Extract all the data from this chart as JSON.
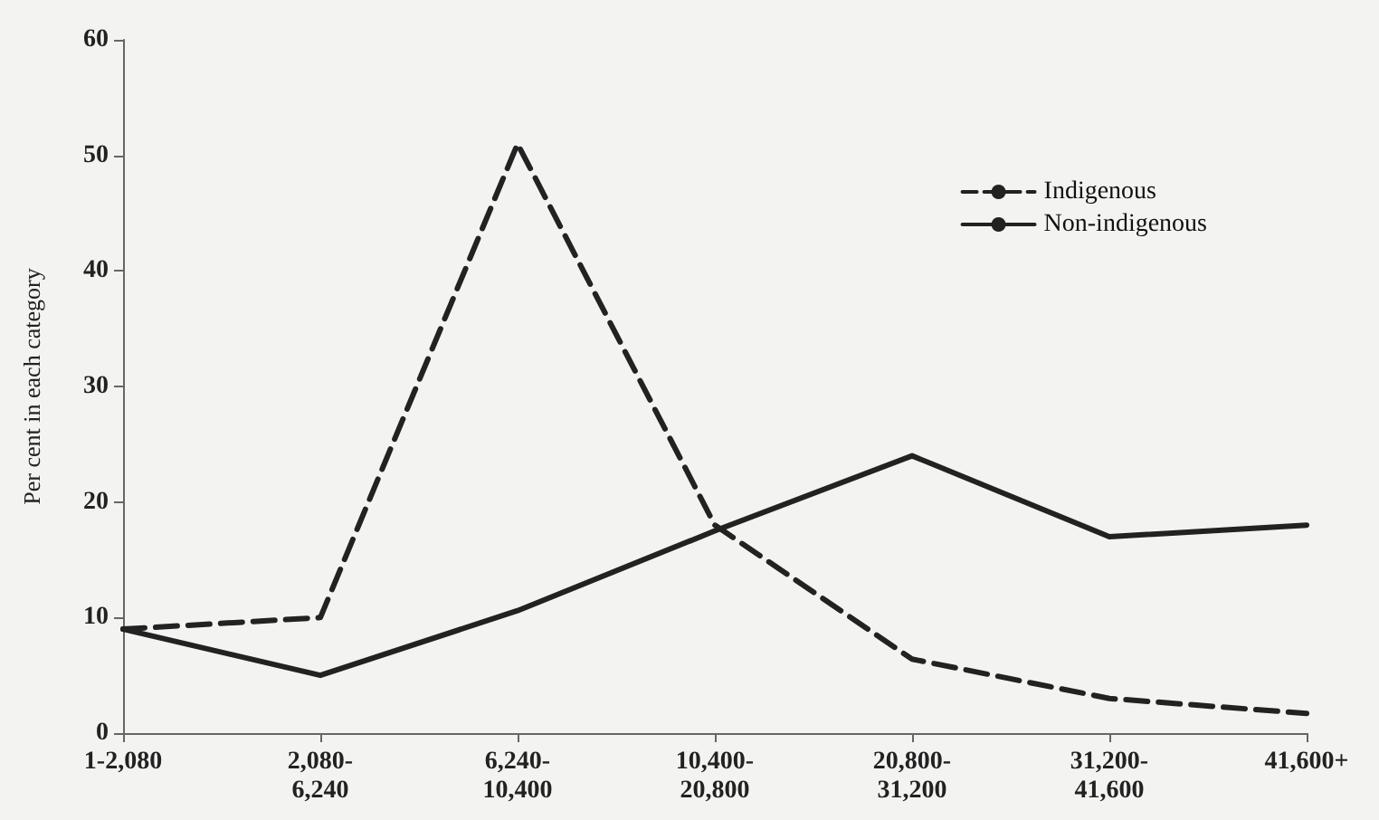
{
  "chart_data": {
    "type": "line",
    "ylabel": "Per cent in each category",
    "categories": [
      "1-2,080",
      "2,080-6,240",
      "6,240-10,400",
      "10,400-20,800",
      "20,800-31,200",
      "31,200-41,600",
      "41,600+"
    ],
    "series": [
      {
        "name": "Indigenous",
        "color": "#222222",
        "line_style": "dashed",
        "values": [
          9,
          10,
          51,
          18,
          6.4,
          3,
          1.7
        ]
      },
      {
        "name": "Non-indigenous",
        "color": "#222222",
        "line_style": "solid",
        "values": [
          9,
          5,
          10.6,
          17.5,
          24,
          17,
          18
        ]
      }
    ],
    "ylim": [
      0,
      60
    ],
    "yticks": [
      0,
      10,
      20,
      30,
      40,
      50,
      60
    ],
    "grid": false,
    "legend": "top right",
    "marker": "none"
  }
}
